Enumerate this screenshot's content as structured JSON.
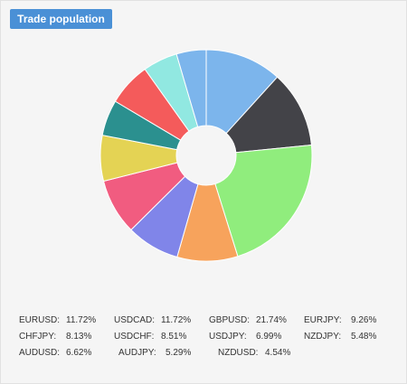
{
  "header": {
    "title_button_label": "Trade population"
  },
  "colors": {
    "button_bg": "#4a90d6",
    "panel_bg": "#f5f5f5"
  },
  "chart_data": {
    "type": "pie",
    "donut": true,
    "title": "",
    "slices": [
      {
        "label": "EURUSD",
        "value": 11.72,
        "display": "11.72%",
        "color": "#7cb5ec"
      },
      {
        "label": "USDCAD",
        "value": 11.72,
        "display": "11.72%",
        "color": "#434348"
      },
      {
        "label": "GBPUSD",
        "value": 21.74,
        "display": "21.74%",
        "color": "#90ed7d"
      },
      {
        "label": "EURJPY",
        "value": 9.26,
        "display": "9.26%",
        "color": "#f7a35c"
      },
      {
        "label": "CHFJPY",
        "value": 8.13,
        "display": "8.13%",
        "color": "#8085e9"
      },
      {
        "label": "USDCHF",
        "value": 8.51,
        "display": "8.51%",
        "color": "#f15c80"
      },
      {
        "label": "USDJPY",
        "value": 6.99,
        "display": "6.99%",
        "color": "#e4d354"
      },
      {
        "label": "NZDJPY",
        "value": 5.48,
        "display": "5.48%",
        "color": "#2b908f"
      },
      {
        "label": "AUDUSD",
        "value": 6.62,
        "display": "6.62%",
        "color": "#f45b5b"
      },
      {
        "label": "AUDJPY",
        "value": 5.29,
        "display": "5.29%",
        "color": "#91e8e1"
      },
      {
        "label": "NZDUSD",
        "value": 4.54,
        "display": "4.54%",
        "color": "#7cb5ec"
      }
    ]
  },
  "legend": {
    "rows": [
      [
        {
          "label": "EURUSD:",
          "value": "11.72%"
        },
        {
          "label": "USDCAD:",
          "value": "11.72%"
        },
        {
          "label": "GBPUSD:",
          "value": "21.74%"
        },
        {
          "label": "EURJPY:",
          "value": "9.26%"
        }
      ],
      [
        {
          "label": "CHFJPY:",
          "value": "8.13%"
        },
        {
          "label": "USDCHF:",
          "value": "8.51%"
        },
        {
          "label": "USDJPY:",
          "value": "6.99%"
        },
        {
          "label": "NZDJPY:",
          "value": "5.48%"
        }
      ],
      [
        {
          "label": "AUDUSD:",
          "value": "6.62%"
        },
        {
          "label": "AUDJPY:",
          "value": "5.29%"
        },
        {
          "label": "NZDUSD:",
          "value": "4.54%"
        }
      ]
    ]
  }
}
